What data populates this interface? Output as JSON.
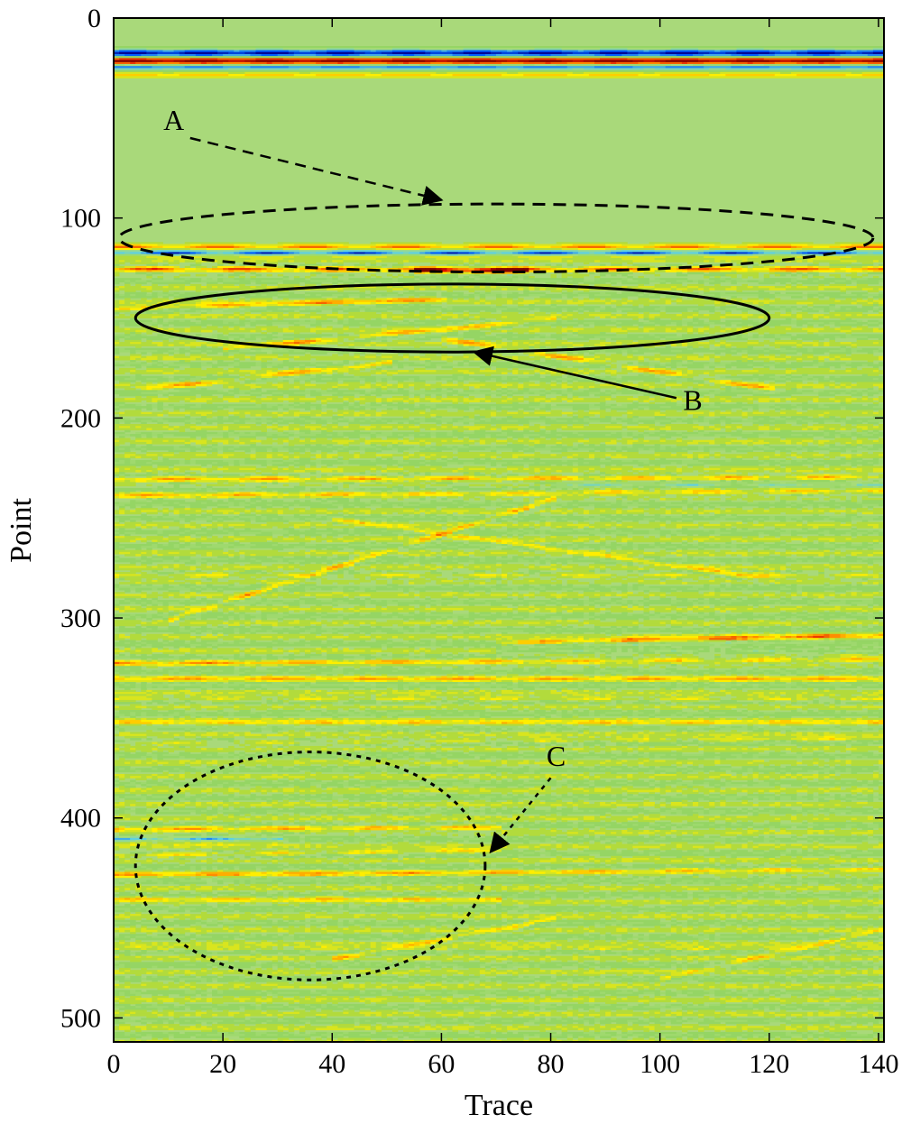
{
  "chart_data": {
    "type": "heatmap",
    "title": "",
    "xlabel": "Trace",
    "ylabel": "Point",
    "xlim": [
      0,
      141
    ],
    "ylim": [
      0,
      512
    ],
    "y_reversed": true,
    "xticks": [
      "0",
      "20",
      "40",
      "60",
      "80",
      "100",
      "120",
      "140"
    ],
    "yticks": [
      "0",
      "100",
      "200",
      "300",
      "400",
      "500"
    ],
    "colormap": [
      "#00008f",
      "#0060ff",
      "#60d0e0",
      "#a8dc78",
      "#8cd25a",
      "#ffee00",
      "#ff8c00",
      "#e01000",
      "#800000"
    ],
    "background_color": "#a9d97a",
    "reflectors": [
      {
        "type": "band",
        "y": 17,
        "amp": -1.0,
        "thick": 1.8
      },
      {
        "type": "band",
        "y": 21,
        "amp": 1.0,
        "thick": 1.6
      },
      {
        "type": "band",
        "y": 24,
        "amp": -0.7,
        "thick": 1.4
      },
      {
        "type": "band",
        "y": 28,
        "amp": 0.35,
        "thick": 1.2
      },
      {
        "type": "line",
        "x0": 0,
        "y0": 114,
        "x1": 141,
        "y1": 114,
        "amp": 0.6
      },
      {
        "type": "line",
        "x0": 0,
        "y0": 117,
        "x1": 141,
        "y1": 117,
        "amp": -0.85
      },
      {
        "type": "line",
        "x0": 0,
        "y0": 125,
        "x1": 141,
        "y1": 125,
        "amp": 0.75
      },
      {
        "type": "line",
        "x0": 55,
        "y0": 126,
        "x1": 75,
        "y1": 126,
        "amp": 0.9
      },
      {
        "type": "line",
        "x0": 0,
        "y0": 145,
        "x1": 60,
        "y1": 140,
        "amp": 0.45
      },
      {
        "type": "line",
        "x0": 20,
        "y0": 165,
        "x1": 80,
        "y1": 150,
        "amp": 0.45
      },
      {
        "type": "line",
        "x0": 5,
        "y0": 185,
        "x1": 50,
        "y1": 172,
        "amp": 0.4
      },
      {
        "type": "line",
        "x0": 60,
        "y0": 160,
        "x1": 120,
        "y1": 185,
        "amp": 0.4
      },
      {
        "type": "line",
        "x0": 0,
        "y0": 230,
        "x1": 141,
        "y1": 229,
        "amp": 0.55
      },
      {
        "type": "line",
        "x0": 80,
        "y0": 233,
        "x1": 141,
        "y1": 233,
        "amp": -0.5
      },
      {
        "type": "line",
        "x0": 0,
        "y0": 238,
        "x1": 141,
        "y1": 236,
        "amp": 0.4
      },
      {
        "type": "line",
        "x0": 10,
        "y0": 300,
        "x1": 80,
        "y1": 240,
        "amp": 0.4
      },
      {
        "type": "line",
        "x0": 40,
        "y0": 250,
        "x1": 120,
        "y1": 280,
        "amp": 0.35
      },
      {
        "type": "line",
        "x0": 0,
        "y0": 278,
        "x1": 141,
        "y1": 278,
        "amp": 0.35
      },
      {
        "type": "line",
        "x0": 70,
        "y0": 312,
        "x1": 141,
        "y1": 308,
        "amp": 0.55
      },
      {
        "type": "line",
        "x0": 70,
        "y0": 316,
        "x1": 141,
        "y1": 316,
        "amp": -0.4
      },
      {
        "type": "line",
        "x0": 0,
        "y0": 322,
        "x1": 141,
        "y1": 320,
        "amp": 0.45
      },
      {
        "type": "line",
        "x0": 0,
        "y0": 330,
        "x1": 141,
        "y1": 330,
        "amp": 0.35
      },
      {
        "type": "line",
        "x0": 0,
        "y0": 340,
        "x1": 141,
        "y1": 340,
        "amp": 0.35
      },
      {
        "type": "line",
        "x0": 0,
        "y0": 352,
        "x1": 141,
        "y1": 352,
        "amp": 0.3
      },
      {
        "type": "line",
        "x0": 0,
        "y0": 362,
        "x1": 141,
        "y1": 360,
        "amp": 0.3
      },
      {
        "type": "line",
        "x0": 0,
        "y0": 405,
        "x1": 70,
        "y1": 404,
        "amp": 0.5
      },
      {
        "type": "line",
        "x0": 0,
        "y0": 410,
        "x1": 30,
        "y1": 410,
        "amp": -0.5
      },
      {
        "type": "line",
        "x0": 0,
        "y0": 418,
        "x1": 70,
        "y1": 416,
        "amp": 0.4
      },
      {
        "type": "line",
        "x0": 0,
        "y0": 428,
        "x1": 141,
        "y1": 425,
        "amp": 0.4
      },
      {
        "type": "line",
        "x0": 0,
        "y0": 440,
        "x1": 70,
        "y1": 440,
        "amp": 0.35
      },
      {
        "type": "line",
        "x0": 40,
        "y0": 470,
        "x1": 80,
        "y1": 450,
        "amp": 0.35
      },
      {
        "type": "line",
        "x0": 100,
        "y0": 480,
        "x1": 141,
        "y1": 455,
        "amp": 0.3
      },
      {
        "type": "line",
        "x0": 0,
        "y0": 465,
        "x1": 141,
        "y1": 465,
        "amp": 0.25
      }
    ],
    "annotations": [
      {
        "label": "A",
        "ellipse": {
          "cx": 70,
          "cy": 110,
          "rx": 69,
          "ry": 17
        },
        "style": "dashed",
        "label_at": [
          11,
          56
        ],
        "arrow_from": [
          14,
          60
        ],
        "arrow_to": [
          60,
          91
        ]
      },
      {
        "label": "B",
        "ellipse": {
          "cx": 62,
          "cy": 150,
          "rx": 58,
          "ry": 17
        },
        "style": "solid",
        "label_at": [
          106,
          196
        ],
        "arrow_from": [
          103,
          190
        ],
        "arrow_to": [
          66,
          167
        ]
      },
      {
        "label": "C",
        "ellipse": {
          "cx": 36,
          "cy": 424,
          "rx": 32,
          "ry": 57
        },
        "style": "dotted",
        "label_at": [
          81,
          374
        ],
        "arrow_from": [
          80,
          380
        ],
        "arrow_to": [
          69,
          417
        ]
      }
    ]
  }
}
